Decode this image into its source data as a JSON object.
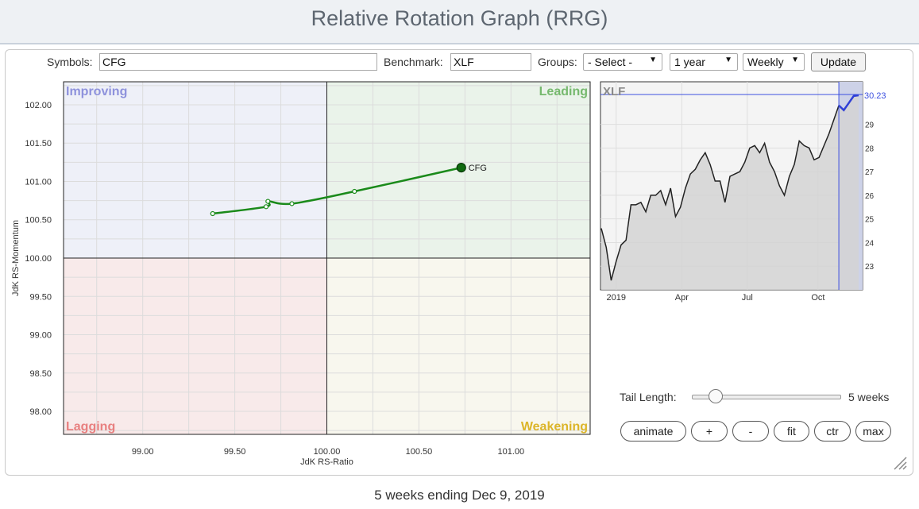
{
  "page": {
    "title": "Relative Rotation Graph (RRG)"
  },
  "toolbar": {
    "symbols_label": "Symbols:",
    "symbols_value": "CFG",
    "benchmark_label": "Benchmark:",
    "benchmark_value": "XLF",
    "groups_label": "Groups:",
    "groups_value": "- Select -",
    "period_value": "1 year",
    "frequency_value": "Weekly",
    "update_label": "Update"
  },
  "chart_data": [
    {
      "type": "line",
      "xlabel": "JdK RS-Ratio",
      "ylabel": "JdK RS-Momentum",
      "xlim": [
        98.57,
        101.43
      ],
      "ylim": [
        97.7,
        102.3
      ],
      "x_ticks": [
        "99.00",
        "99.50",
        "100.00",
        "100.50",
        "101.00"
      ],
      "y_ticks": [
        "102.00",
        "101.50",
        "101.00",
        "100.50",
        "100.00",
        "99.50",
        "99.00",
        "98.50",
        "98.00"
      ],
      "quadrants": [
        {
          "name": "Improving",
          "color": "#8e92dc",
          "fill": "#eef0f8"
        },
        {
          "name": "Leading",
          "color": "#76b96e",
          "fill": "#eaf3ea"
        },
        {
          "name": "Lagging",
          "color": "#e88080",
          "fill": "#f8eaea"
        },
        {
          "name": "Weakening",
          "color": "#dcb52a",
          "fill": "#f8f7ee"
        }
      ],
      "series": [
        {
          "name": "CFG",
          "color": "#1a8a1a",
          "points": [
            {
              "x": 99.38,
              "y": 100.58
            },
            {
              "x": 99.67,
              "y": 100.67
            },
            {
              "x": 99.68,
              "y": 100.74
            },
            {
              "x": 99.81,
              "y": 100.71
            },
            {
              "x": 100.15,
              "y": 100.87
            },
            {
              "x": 100.73,
              "y": 101.18
            }
          ]
        }
      ]
    },
    {
      "type": "area",
      "title": "XLF",
      "last_value_label": "30.23",
      "ylim": [
        22,
        30.8
      ],
      "y_ticks": [
        23,
        24,
        25,
        26,
        27,
        28,
        29
      ],
      "x_ticks": [
        "2019",
        "Apr",
        "Jul",
        "Oct"
      ],
      "series": [
        {
          "name": "XLF",
          "values": [
            24.6,
            23.8,
            22.4,
            23.2,
            23.9,
            24.1,
            25.6,
            25.6,
            25.7,
            25.3,
            26.0,
            26.0,
            26.2,
            25.6,
            26.3,
            25.1,
            25.5,
            26.3,
            26.9,
            27.1,
            27.5,
            27.8,
            27.3,
            26.6,
            26.6,
            25.7,
            26.8,
            26.9,
            27.0,
            27.4,
            28.0,
            28.1,
            27.8,
            28.2,
            27.4,
            27.0,
            26.4,
            26.0,
            26.8,
            27.3,
            28.3,
            28.1,
            28.0,
            27.5,
            27.6,
            28.1,
            28.6,
            29.2,
            29.8,
            29.6,
            29.9,
            30.2,
            30.23
          ]
        }
      ],
      "highlight_last_points": 5
    }
  ],
  "controls": {
    "tail_label": "Tail Length:",
    "tail_value_label": "5 weeks",
    "tail_fraction": 0.16,
    "buttons": [
      "animate",
      "+",
      "-",
      "fit",
      "ctr",
      "max"
    ]
  },
  "footer": {
    "caption": "5 weeks ending Dec 9, 2019"
  }
}
